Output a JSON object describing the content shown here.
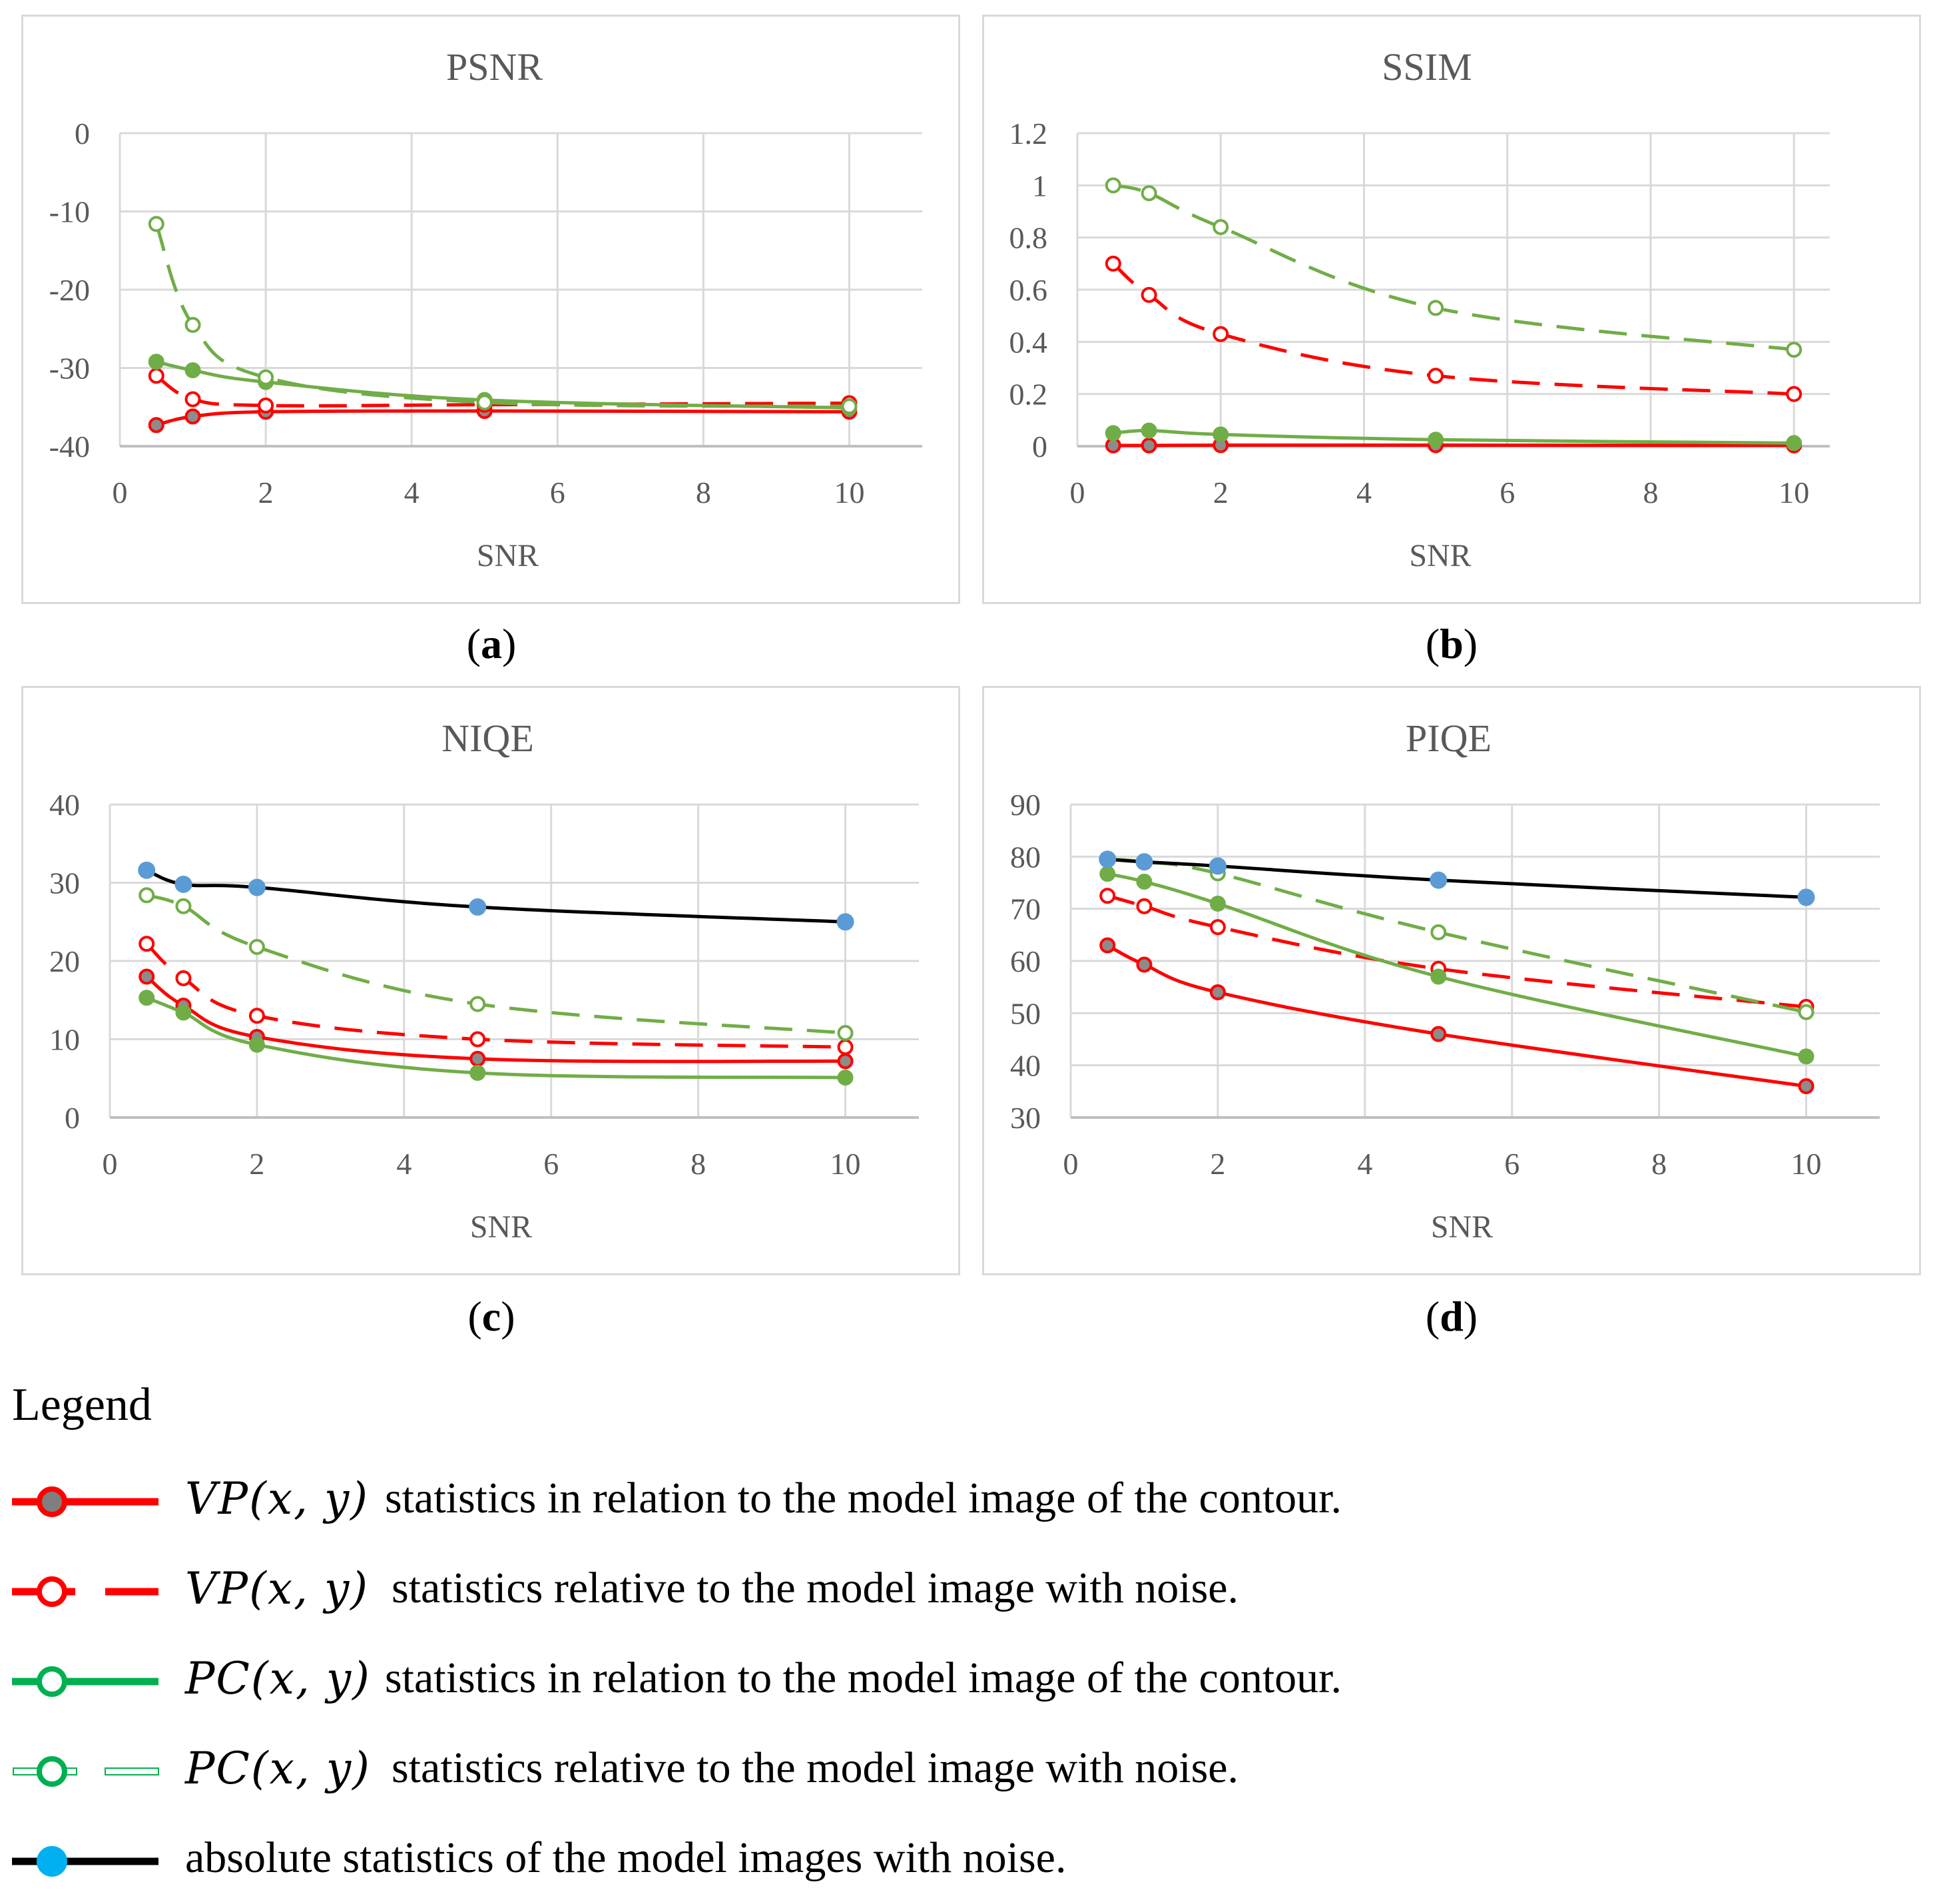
{
  "charts": [
    {
      "id": "a",
      "panel_label_open": "(",
      "panel_label": "a",
      "panel_label_close": ")",
      "chart_data": {
        "type": "line",
        "title": "PSNR",
        "xlabel": "SNR",
        "ylabel": "",
        "xlim": [
          0,
          11
        ],
        "ylim": [
          -40,
          0
        ],
        "xticks": [
          0,
          2,
          4,
          6,
          8,
          10
        ],
        "yticks": [
          -40,
          -30,
          -20,
          -10,
          0
        ],
        "grid": true,
        "x": [
          0.5,
          1,
          2,
          5,
          10
        ],
        "series": [
          {
            "name": "VP contour",
            "color": "#ff0000",
            "dash": false,
            "marker": "filled-gray",
            "values": [
              -37.3,
              -36.2,
              -35.6,
              -35.5,
              -35.6
            ]
          },
          {
            "name": "VP noise",
            "color": "#ff0000",
            "dash": true,
            "marker": "open",
            "values": [
              -31.0,
              -34.0,
              -34.8,
              -34.7,
              -34.5
            ]
          },
          {
            "name": "PC contour",
            "color": "#70ad47",
            "dash": false,
            "marker": "filled",
            "values": [
              -29.2,
              -30.3,
              -31.8,
              -34.1,
              -35.1
            ]
          },
          {
            "name": "PC noise",
            "color": "#70ad47",
            "dash": true,
            "marker": "open",
            "values": [
              -11.6,
              -24.5,
              -31.2,
              -34.4,
              -34.9
            ]
          }
        ]
      }
    },
    {
      "id": "b",
      "panel_label_open": "(",
      "panel_label": "b",
      "panel_label_close": ")",
      "chart_data": {
        "type": "line",
        "title": "SSIM",
        "xlabel": "SNR",
        "ylabel": "",
        "xlim": [
          0,
          10.5
        ],
        "ylim": [
          0,
          1.2
        ],
        "xticks": [
          0,
          2,
          4,
          6,
          8,
          10
        ],
        "yticks": [
          0,
          0.2,
          0.4,
          0.6,
          0.8,
          1,
          1.2
        ],
        "grid": true,
        "x": [
          0.5,
          1,
          2,
          5,
          10
        ],
        "series": [
          {
            "name": "VP contour",
            "color": "#ff0000",
            "dash": false,
            "marker": "filled-gray",
            "values": [
              0.003,
              0.003,
              0.004,
              0.004,
              0.003
            ]
          },
          {
            "name": "VP noise",
            "color": "#ff0000",
            "dash": true,
            "marker": "open",
            "values": [
              0.7,
              0.58,
              0.43,
              0.27,
              0.2
            ]
          },
          {
            "name": "PC contour",
            "color": "#70ad47",
            "dash": false,
            "marker": "filled",
            "values": [
              0.05,
              0.06,
              0.045,
              0.025,
              0.012
            ]
          },
          {
            "name": "PC noise",
            "color": "#70ad47",
            "dash": true,
            "marker": "open",
            "values": [
              1.0,
              0.97,
              0.84,
              0.53,
              0.37
            ]
          }
        ]
      }
    },
    {
      "id": "c",
      "panel_label_open": "(",
      "panel_label": "c",
      "panel_label_close": ")",
      "chart_data": {
        "type": "line",
        "title": "NIQE",
        "xlabel": "SNR",
        "ylabel": "",
        "xlim": [
          0,
          11
        ],
        "ylim": [
          0,
          40
        ],
        "xticks": [
          0,
          2,
          4,
          6,
          8,
          10
        ],
        "yticks": [
          0,
          10,
          20,
          30,
          40
        ],
        "grid": true,
        "x": [
          0.5,
          1,
          2,
          5,
          10
        ],
        "series": [
          {
            "name": "VP contour",
            "color": "#ff0000",
            "dash": false,
            "marker": "filled-gray",
            "values": [
              18.0,
              14.3,
              10.3,
              7.5,
              7.2
            ]
          },
          {
            "name": "VP noise",
            "color": "#ff0000",
            "dash": true,
            "marker": "open",
            "values": [
              22.2,
              17.8,
              13.0,
              10.0,
              9.0
            ]
          },
          {
            "name": "PC contour",
            "color": "#70ad47",
            "dash": false,
            "marker": "filled",
            "values": [
              15.3,
              13.4,
              9.3,
              5.7,
              5.1
            ]
          },
          {
            "name": "PC noise",
            "color": "#70ad47",
            "dash": true,
            "marker": "open",
            "values": [
              28.4,
              27.0,
              21.8,
              14.5,
              10.8
            ]
          },
          {
            "name": "absolute",
            "color": "#000000",
            "dash": false,
            "marker": "filled-blue",
            "values": [
              31.6,
              29.8,
              29.4,
              26.9,
              25.0
            ]
          }
        ]
      }
    },
    {
      "id": "d",
      "panel_label_open": "(",
      "panel_label": "d",
      "panel_label_close": ")",
      "chart_data": {
        "type": "line",
        "title": "PIQE",
        "xlabel": "SNR",
        "ylabel": "",
        "xlim": [
          0,
          11
        ],
        "ylim": [
          30,
          90
        ],
        "xticks": [
          0,
          2,
          4,
          6,
          8,
          10
        ],
        "yticks": [
          30,
          40,
          50,
          60,
          70,
          80,
          90
        ],
        "grid": true,
        "x": [
          0.5,
          1,
          2,
          5,
          10
        ],
        "series": [
          {
            "name": "VP contour",
            "color": "#ff0000",
            "dash": false,
            "marker": "filled-gray",
            "values": [
              63.0,
              59.3,
              54.0,
              46.0,
              36.0
            ]
          },
          {
            "name": "VP noise",
            "color": "#ff0000",
            "dash": true,
            "marker": "open",
            "values": [
              72.5,
              70.5,
              66.5,
              58.5,
              51.2
            ]
          },
          {
            "name": "PC contour",
            "color": "#70ad47",
            "dash": false,
            "marker": "filled",
            "values": [
              76.7,
              75.2,
              71.0,
              57.0,
              41.7
            ]
          },
          {
            "name": "PC noise",
            "color": "#70ad47",
            "dash": true,
            "marker": "open",
            "values": [
              79.5,
              79.0,
              76.8,
              65.5,
              50.2
            ]
          },
          {
            "name": "absolute",
            "color": "#000000",
            "dash": false,
            "marker": "filled-blue",
            "values": [
              79.5,
              79.0,
              78.2,
              75.5,
              72.2
            ]
          }
        ]
      }
    }
  ],
  "legend": {
    "title": "Legend",
    "items": [
      {
        "var": "VP(x, y)",
        "text": "statistics in relation to the model image of the contour.",
        "line_color": "#ff0000",
        "style": "solid",
        "marker_fill": "#7f7f7f",
        "marker_stroke": "#ff0000"
      },
      {
        "var": "VP(x, y)",
        "text": "statistics relative to the model image with noise.",
        "line_color": "#ff0000",
        "style": "dash",
        "marker_fill": "#ffffff",
        "marker_stroke": "#ff0000"
      },
      {
        "var": "PC(x, y)",
        "text": "statistics in relation to the model image of the contour.",
        "line_color": "#00b050",
        "style": "solid",
        "marker_fill": "#ffffff",
        "marker_stroke": "#00b050"
      },
      {
        "var": "PC(x, y)",
        "text": "statistics relative to the model image with noise.",
        "line_color": "#00b050",
        "style": "hollow",
        "marker_fill": "#ffffff",
        "marker_stroke": "#00b050"
      },
      {
        "var": "",
        "text": "absolute statistics of the model images with noise.",
        "line_color": "#000000",
        "style": "solid",
        "marker_fill": "#00b0f0",
        "marker_stroke": "#00b0f0"
      }
    ]
  }
}
